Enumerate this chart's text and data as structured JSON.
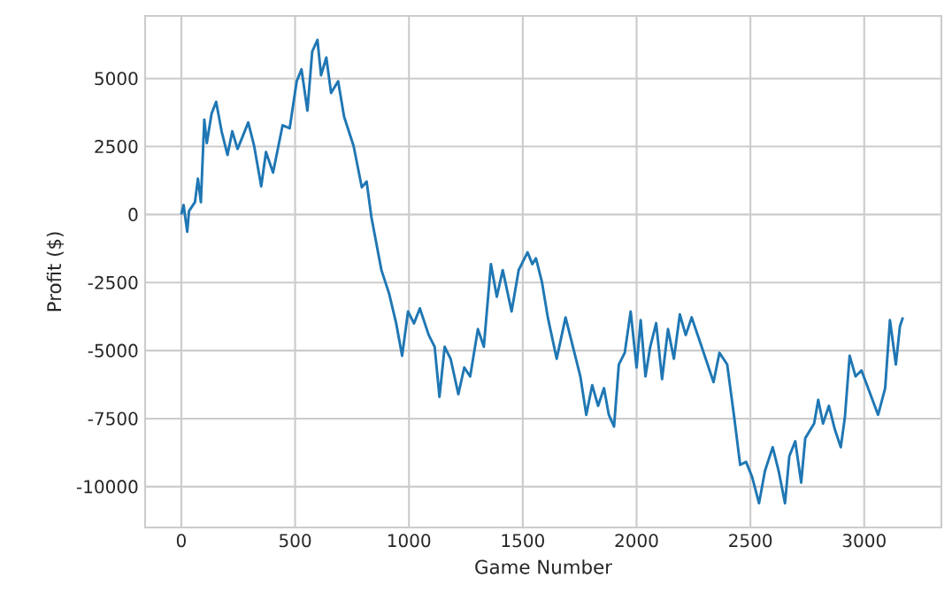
{
  "chart_data": {
    "type": "line",
    "xlabel": "Game Number",
    "ylabel": "Profit ($)",
    "xlim": [
      -159,
      3339
    ],
    "ylim": [
      -11500,
      7300
    ],
    "xticks": [
      0,
      500,
      1000,
      1500,
      2000,
      2500,
      3000
    ],
    "yticks": [
      -10000,
      -7500,
      -5000,
      -2500,
      0,
      2500,
      5000
    ],
    "grid": true,
    "line_style": "solid",
    "marker": "none",
    "series": [
      {
        "color": "#1f77b4",
        "x": [
          0,
          10,
          26,
          34,
          60,
          73,
          86,
          101,
          112,
          133,
          153,
          177,
          203,
          224,
          247,
          268,
          294,
          320,
          351,
          372,
          403,
          424,
          445,
          476,
          507,
          528,
          554,
          575,
          598,
          614,
          637,
          658,
          689,
          715,
          757,
          793,
          814,
          835,
          879,
          913,
          944,
          970,
          996,
          1022,
          1048,
          1087,
          1113,
          1134,
          1157,
          1183,
          1217,
          1243,
          1269,
          1303,
          1329,
          1360,
          1386,
          1412,
          1451,
          1482,
          1521,
          1542,
          1558,
          1584,
          1610,
          1649,
          1688,
          1727,
          1753,
          1779,
          1805,
          1831,
          1857,
          1878,
          1901,
          1922,
          1948,
          1974,
          2000,
          2018,
          2039,
          2060,
          2086,
          2112,
          2138,
          2164,
          2190,
          2216,
          2242,
          2273,
          2312,
          2338,
          2364,
          2398,
          2429,
          2455,
          2481,
          2507,
          2538,
          2564,
          2598,
          2624,
          2652,
          2671,
          2697,
          2723,
          2741,
          2780,
          2798,
          2819,
          2845,
          2871,
          2897,
          2915,
          2936,
          2962,
          2988,
          3022,
          3061,
          3092,
          3113,
          3139,
          3157,
          3170
        ],
        "values": [
          0,
          350,
          -630,
          130,
          455,
          1320,
          455,
          3490,
          2625,
          3710,
          4145,
          3060,
          2190,
          3060,
          2410,
          2840,
          3385,
          2520,
          1040,
          2300,
          1540,
          2410,
          3280,
          3170,
          4900,
          5340,
          3820,
          5990,
          6420,
          5120,
          5770,
          4470,
          4900,
          3600,
          2520,
          1000,
          1215,
          -90,
          -2040,
          -2910,
          -4000,
          -5190,
          -3560,
          -4000,
          -3450,
          -4430,
          -4860,
          -6700,
          -4860,
          -5300,
          -6600,
          -5620,
          -5950,
          -4210,
          -4860,
          -1820,
          -3020,
          -2040,
          -3560,
          -2040,
          -1390,
          -1820,
          -1610,
          -2470,
          -3780,
          -5300,
          -3780,
          -5080,
          -5950,
          -7360,
          -6270,
          -7030,
          -6380,
          -7360,
          -7790,
          -5510,
          -5080,
          -3560,
          -5620,
          -3880,
          -5950,
          -4860,
          -3990,
          -6050,
          -4210,
          -5300,
          -3670,
          -4430,
          -3780,
          -4540,
          -5510,
          -6160,
          -5080,
          -5510,
          -7460,
          -9200,
          -9090,
          -9630,
          -10610,
          -9420,
          -8550,
          -9420,
          -10610,
          -8880,
          -8330,
          -9850,
          -8220,
          -7680,
          -6810,
          -7680,
          -7030,
          -7900,
          -8550,
          -7460,
          -5190,
          -5950,
          -5730,
          -6490,
          -7360,
          -6380,
          -3880,
          -5510,
          -4100,
          -3780
        ]
      }
    ]
  }
}
